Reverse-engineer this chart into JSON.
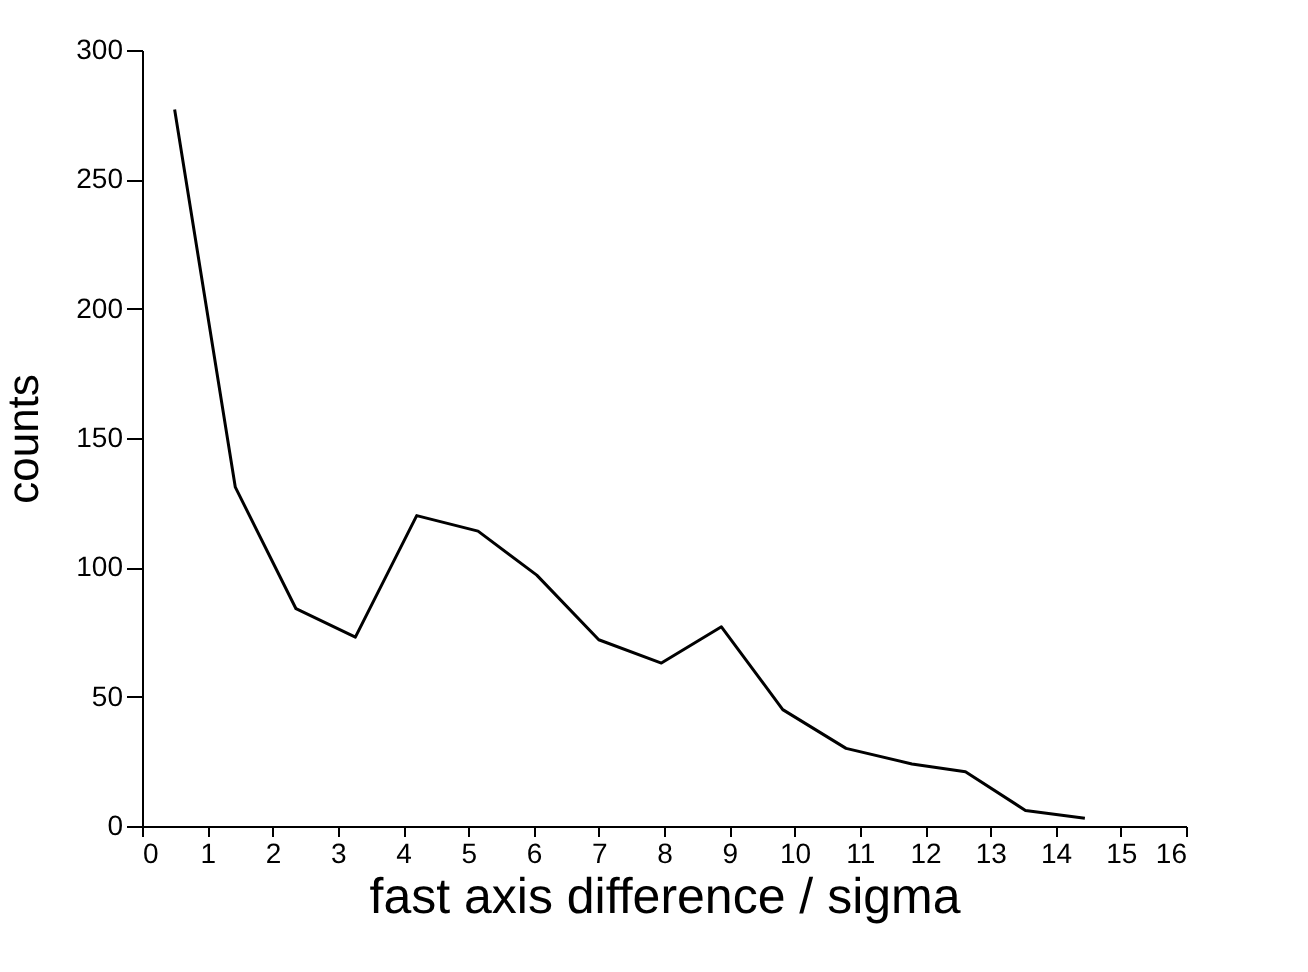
{
  "chart_data": {
    "type": "line",
    "xlabel": "fast axis difference / sigma",
    "ylabel": "counts",
    "x": [
      0.5,
      1.43,
      2.36,
      3.27,
      4.21,
      5.15,
      6.05,
      7.0,
      7.96,
      8.88,
      9.82,
      10.79,
      11.8,
      12.62,
      13.54,
      14.45
    ],
    "series": [
      {
        "color": "#000000",
        "values": [
          277,
          131,
          84,
          73,
          120,
          114,
          97,
          72,
          63,
          77,
          45,
          30,
          24,
          21,
          6,
          3
        ]
      }
    ],
    "xlim": [
      0,
      16
    ],
    "xticks": [
      0,
      1,
      2,
      3,
      4,
      5,
      6,
      7,
      8,
      9,
      10,
      11,
      12,
      13,
      14,
      15,
      16
    ],
    "ylim": [
      0,
      300
    ],
    "yticks": [
      0,
      50,
      100,
      150,
      200,
      250,
      300
    ],
    "grid": false,
    "marker": "none",
    "line_style": "solid"
  }
}
